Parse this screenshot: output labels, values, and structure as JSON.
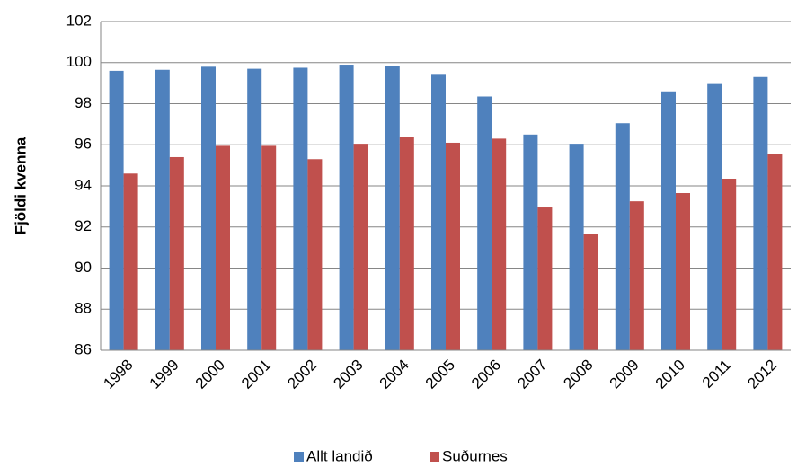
{
  "chart_data": {
    "type": "bar",
    "ylabel": "Fjöldi kvenna",
    "categories": [
      "1998",
      "1999",
      "2000",
      "2001",
      "2002",
      "2003",
      "2004",
      "2005",
      "2006",
      "2007",
      "2008",
      "2009",
      "2010",
      "2011",
      "2012"
    ],
    "series": [
      {
        "name": "Allt landið",
        "color": "#4f81bd",
        "values": [
          99.6,
          99.65,
          99.8,
          99.7,
          99.75,
          99.9,
          99.85,
          99.45,
          98.35,
          96.5,
          96.05,
          97.05,
          98.6,
          99.0,
          99.3
        ]
      },
      {
        "name": "Suðurnes",
        "color": "#c0504d",
        "values": [
          94.6,
          95.4,
          95.95,
          95.95,
          95.3,
          96.05,
          96.4,
          96.1,
          96.3,
          92.95,
          91.65,
          93.25,
          93.65,
          94.35,
          95.55
        ]
      }
    ],
    "ylim": [
      86,
      102
    ],
    "yticks": [
      86,
      88,
      90,
      92,
      94,
      96,
      98,
      100,
      102
    ],
    "grid": true,
    "legend": "bottom"
  }
}
